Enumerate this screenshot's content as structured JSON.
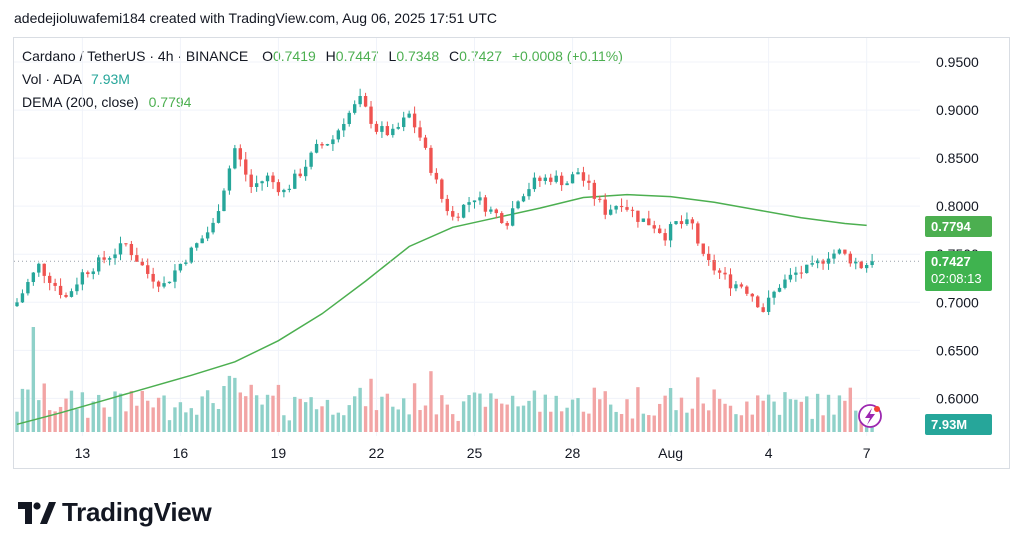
{
  "caption": "adedejioluwafemi184 created with TradingView.com, Aug 06, 2025 17:51 UTC",
  "legend": {
    "symbol": "Cardano / TetherUS · 4h · BINANCE",
    "o_label": "O",
    "o_value": "0.7419",
    "h_label": "H",
    "h_value": "0.7447",
    "l_label": "L",
    "l_value": "0.7348",
    "c_label": "C",
    "c_value": "0.7427",
    "change": "+0.0008 (+0.11%)",
    "vol_label": "Vol · ADA",
    "vol_value": "7.93M",
    "dema_label": "DEMA (200, close)",
    "dema_value": "0.7794"
  },
  "tags": {
    "dema": "0.7794",
    "price": "0.7427",
    "countdown": "02:08:13",
    "volume": "7.93M"
  },
  "logo_text": "TradingView",
  "colors": {
    "up": "#26a69a",
    "down": "#ef5350",
    "vol_up": "#8fd1c9",
    "vol_down": "#f2a5a5",
    "dema": "#4caf50",
    "price_tag": "#3fb34f",
    "grid": "#f0f3fa",
    "axis_text": "#131722"
  },
  "chart_data": {
    "type": "candlestick",
    "title": "Cardano / TetherUS · 4h · BINANCE",
    "price_axis_ticks": [
      "0.9500",
      "0.9000",
      "0.8500",
      "0.8000",
      "0.7500",
      "0.7000",
      "0.6500",
      "0.6000"
    ],
    "price_axis_values": [
      0.95,
      0.9,
      0.85,
      0.8,
      0.75,
      0.7,
      0.65,
      0.6
    ],
    "ylim": [
      0.565,
      0.975
    ],
    "x_tick_labels": [
      "13",
      "16",
      "19",
      "22",
      "25",
      "28",
      "Aug",
      "4",
      "7"
    ],
    "x_tick_positions": [
      12,
      30,
      48,
      66,
      84,
      102,
      120,
      138,
      156
    ],
    "xlim": [
      0,
      159
    ],
    "current_price": 0.7427,
    "dema": {
      "name": "DEMA (200, close)",
      "last": 0.7794,
      "points": [
        [
          0,
          0.573
        ],
        [
          8,
          0.585
        ],
        [
          16,
          0.598
        ],
        [
          24,
          0.611
        ],
        [
          32,
          0.624
        ],
        [
          40,
          0.638
        ],
        [
          48,
          0.66
        ],
        [
          56,
          0.688
        ],
        [
          64,
          0.722
        ],
        [
          72,
          0.758
        ],
        [
          80,
          0.778
        ],
        [
          88,
          0.788
        ],
        [
          96,
          0.798
        ],
        [
          104,
          0.809
        ],
        [
          112,
          0.812
        ],
        [
          120,
          0.81
        ],
        [
          128,
          0.804
        ],
        [
          136,
          0.796
        ],
        [
          144,
          0.788
        ],
        [
          152,
          0.782
        ],
        [
          156,
          0.78
        ]
      ]
    },
    "close_keypoints": [
      [
        0,
        0.7
      ],
      [
        2,
        0.72
      ],
      [
        4,
        0.738
      ],
      [
        7,
        0.718
      ],
      [
        9,
        0.705
      ],
      [
        12,
        0.73
      ],
      [
        16,
        0.745
      ],
      [
        20,
        0.76
      ],
      [
        24,
        0.73
      ],
      [
        27,
        0.718
      ],
      [
        30,
        0.74
      ],
      [
        33,
        0.76
      ],
      [
        36,
        0.78
      ],
      [
        40,
        0.86
      ],
      [
        43,
        0.82
      ],
      [
        46,
        0.83
      ],
      [
        49,
        0.815
      ],
      [
        52,
        0.835
      ],
      [
        55,
        0.86
      ],
      [
        58,
        0.87
      ],
      [
        60,
        0.89
      ],
      [
        63,
        0.91
      ],
      [
        66,
        0.88
      ],
      [
        69,
        0.875
      ],
      [
        72,
        0.895
      ],
      [
        74,
        0.872
      ],
      [
        76,
        0.84
      ],
      [
        78,
        0.808
      ],
      [
        80,
        0.788
      ],
      [
        82,
        0.8
      ],
      [
        84,
        0.81
      ],
      [
        87,
        0.795
      ],
      [
        90,
        0.785
      ],
      [
        92,
        0.81
      ],
      [
        95,
        0.825
      ],
      [
        98,
        0.83
      ],
      [
        101,
        0.825
      ],
      [
        103,
        0.836
      ],
      [
        106,
        0.81
      ],
      [
        108,
        0.795
      ],
      [
        111,
        0.805
      ],
      [
        114,
        0.788
      ],
      [
        117,
        0.78
      ],
      [
        119,
        0.77
      ],
      [
        121,
        0.782
      ],
      [
        124,
        0.78
      ],
      [
        126,
        0.745
      ],
      [
        129,
        0.73
      ],
      [
        131,
        0.72
      ],
      [
        133,
        0.718
      ],
      [
        135,
        0.708
      ],
      [
        137,
        0.692
      ],
      [
        140,
        0.718
      ],
      [
        143,
        0.73
      ],
      [
        146,
        0.735
      ],
      [
        149,
        0.75
      ],
      [
        151,
        0.752
      ],
      [
        153,
        0.745
      ],
      [
        155,
        0.738
      ],
      [
        157,
        0.742
      ]
    ],
    "volume": {
      "name": "Vol · ADA",
      "unit": "M",
      "last": 7.93,
      "peak_index": 3,
      "peak_value": 110
    }
  }
}
